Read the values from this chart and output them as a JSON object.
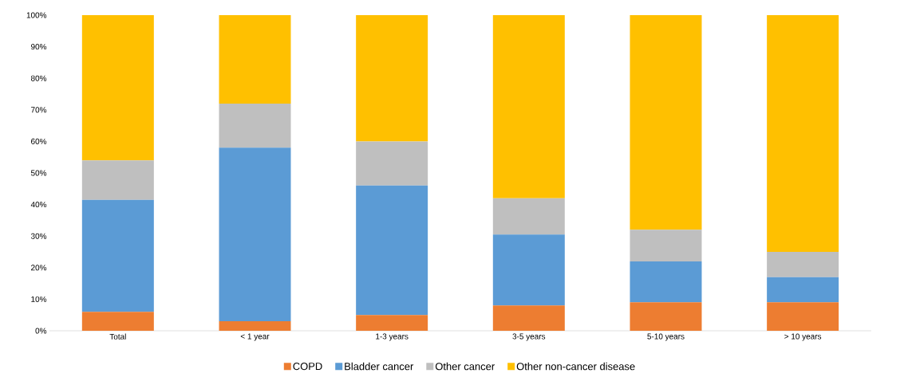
{
  "chart_data": {
    "type": "bar",
    "stacked": true,
    "categories": [
      "Total",
      "< 1 year",
      "1-3 years",
      "3-5 years",
      "5-10 years",
      "> 10 years"
    ],
    "series": [
      {
        "name": "COPD",
        "color": "#ed7d31",
        "values": [
          6,
          3,
          5,
          8,
          9,
          9
        ]
      },
      {
        "name": "Bladder cancer",
        "color": "#5b9bd5",
        "values": [
          35.5,
          55,
          41,
          22.5,
          13,
          8
        ]
      },
      {
        "name": "Other cancer",
        "color": "#bfbfbf",
        "values": [
          12.5,
          14,
          14,
          11.5,
          10,
          8
        ]
      },
      {
        "name": "Other non-cancer disease",
        "color": "#ffc000",
        "values": [
          46,
          28,
          40,
          58,
          68,
          75
        ]
      }
    ],
    "ylim": [
      0,
      100
    ],
    "yticks": [
      {
        "value": 0,
        "label": "0%"
      },
      {
        "value": 10,
        "label": "10%"
      },
      {
        "value": 20,
        "label": "20%"
      },
      {
        "value": 30,
        "label": "30%"
      },
      {
        "value": 40,
        "label": "40%"
      },
      {
        "value": 50,
        "label": "50%"
      },
      {
        "value": 60,
        "label": "60%"
      },
      {
        "value": 70,
        "label": "70%"
      },
      {
        "value": 80,
        "label": "80%"
      },
      {
        "value": 90,
        "label": "90%"
      },
      {
        "value": 100,
        "label": "100%"
      }
    ],
    "grid": false,
    "legend": "bottom"
  }
}
